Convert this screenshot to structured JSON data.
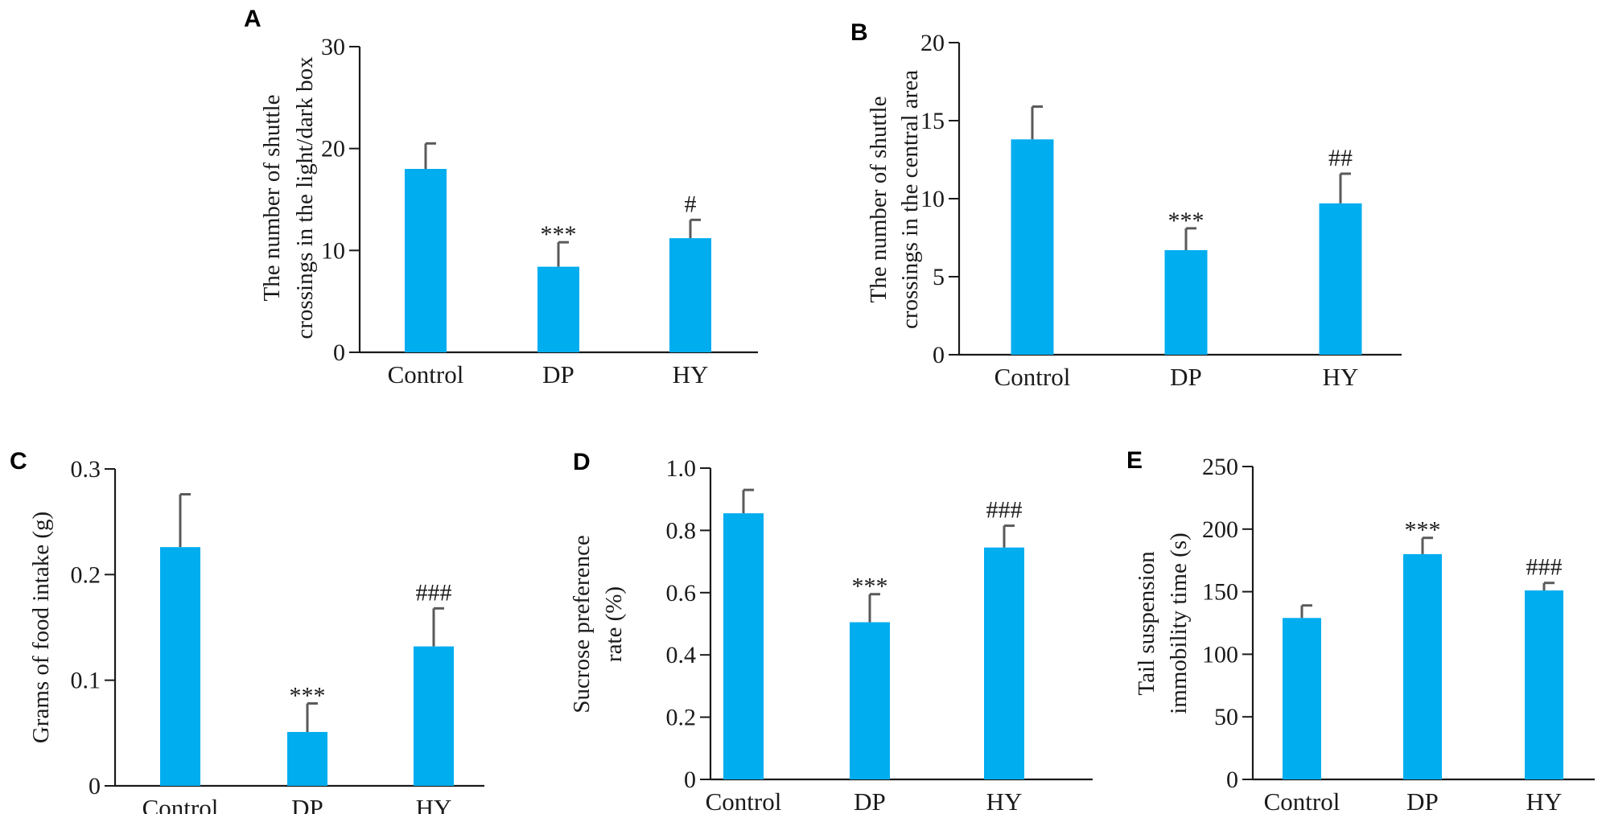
{
  "colors": {
    "bar": "#00adef",
    "axis": "#1a1a1a",
    "error_bar": "#5a5a5a"
  },
  "chart_data": [
    {
      "panel": "A",
      "type": "bar",
      "categories": [
        "Control",
        "DP",
        "HY"
      ],
      "values": [
        18,
        8.4,
        11.2
      ],
      "errors": [
        2.5,
        2.4,
        1.8
      ],
      "annotations": [
        "",
        "***",
        "#"
      ],
      "ylabel_lines": [
        "The number of shuttle",
        "crossings in the light/dark box"
      ],
      "ylim": [
        0,
        30
      ],
      "yticks": [
        "0",
        "10",
        "20",
        "30"
      ],
      "ytick_values": [
        0,
        10,
        20,
        30
      ]
    },
    {
      "panel": "B",
      "type": "bar",
      "categories": [
        "Control",
        "DP",
        "HY"
      ],
      "values": [
        13.8,
        6.7,
        9.7
      ],
      "errors": [
        2.1,
        1.4,
        1.9
      ],
      "annotations": [
        "",
        "***",
        "##"
      ],
      "ylabel_lines": [
        "The number of shuttle",
        "crossings in the central area"
      ],
      "ylim": [
        0,
        20
      ],
      "yticks": [
        "0",
        "5",
        "10",
        "15",
        "20"
      ],
      "ytick_values": [
        0,
        5,
        10,
        15,
        20
      ]
    },
    {
      "panel": "C",
      "type": "bar",
      "categories": [
        "Control",
        "DP",
        "HY"
      ],
      "values": [
        0.226,
        0.051,
        0.132
      ],
      "errors": [
        0.05,
        0.027,
        0.036
      ],
      "annotations": [
        "",
        "***",
        "###"
      ],
      "ylabel_lines": [
        "Grams of food intake (g)"
      ],
      "ylim": [
        0,
        0.3
      ],
      "yticks": [
        "0",
        "0.1",
        "0.2",
        "0.3"
      ],
      "ytick_values": [
        0,
        0.1,
        0.2,
        0.3
      ]
    },
    {
      "panel": "D",
      "type": "bar",
      "categories": [
        "Control",
        "DP",
        "HY"
      ],
      "values": [
        0.855,
        0.505,
        0.745
      ],
      "errors": [
        0.075,
        0.09,
        0.07
      ],
      "annotations": [
        "",
        "***",
        "###"
      ],
      "ylabel_lines": [
        "Sucrose preference",
        "rate (%)"
      ],
      "ylim": [
        0,
        1.0
      ],
      "yticks": [
        "0",
        "0.2",
        "0.4",
        "0.6",
        "0.8",
        "1.0"
      ],
      "ytick_values": [
        0,
        0.2,
        0.4,
        0.6,
        0.8,
        1.0
      ]
    },
    {
      "panel": "E",
      "type": "bar",
      "categories": [
        "Control",
        "DP",
        "HY"
      ],
      "values": [
        129,
        180,
        151
      ],
      "errors": [
        10,
        13,
        6
      ],
      "annotations": [
        "",
        "***",
        "###"
      ],
      "ylabel_lines": [
        "Tail suspension",
        "immobility time (s)"
      ],
      "ylim": [
        0,
        250
      ],
      "yticks": [
        "0",
        "50",
        "100",
        "150",
        "200",
        "250"
      ],
      "ytick_values": [
        0,
        50,
        100,
        150,
        200,
        250
      ]
    }
  ]
}
